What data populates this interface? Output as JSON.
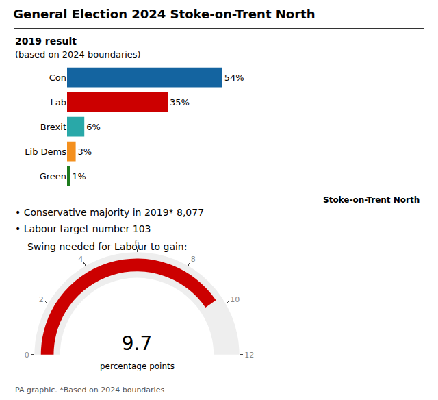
{
  "chart_data": [
    {
      "type": "bar",
      "title": "General Election 2024 Stoke-on-Trent North",
      "subtitle": "2019 result",
      "annotations": [
        "(based on 2024 boundaries)",
        "• Conservative majority in 2019* 8,077",
        "• Labour target number 103",
        "Stoke-on-Trent North",
        "PA graphic. *Based on 2024 boundaries"
      ],
      "orientation": "horizontal",
      "categories": [
        "Con",
        "Lab",
        "Brexit",
        "Lib Dems",
        "Green"
      ],
      "values": [
        54,
        35,
        6,
        3,
        1
      ],
      "value_labels": [
        "54%",
        "35%",
        "6%",
        "3%",
        "1%"
      ],
      "colors": [
        "#1464A0",
        "#CC0000",
        "#29A8A8",
        "#F4901E",
        "#1E7B1E"
      ],
      "data_labels": true,
      "xlim": [
        0,
        70
      ],
      "xticks": [
        0,
        10,
        20,
        30,
        40,
        50,
        60,
        70
      ],
      "tick_labels": "y",
      "grid": false
    },
    {
      "type": "gauge",
      "title": "Swing needed for Labour to gain:",
      "values": [
        9.7
      ],
      "annotations": [
        "percentage points"
      ],
      "ylim": [
        0,
        12
      ],
      "yticks": [
        0,
        2,
        4,
        6,
        8,
        10,
        12
      ],
      "color": "#CC0000",
      "data_labels": true
    }
  ]
}
